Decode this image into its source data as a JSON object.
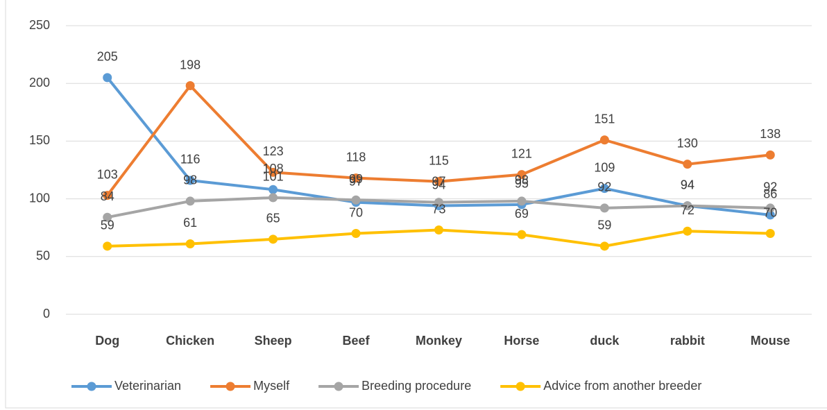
{
  "chart_data": {
    "type": "line",
    "categories": [
      "Dog",
      "Chicken",
      "Sheep",
      "Beef",
      "Monkey",
      "Horse",
      "duck",
      "rabbit",
      "Mouse"
    ],
    "series": [
      {
        "name": "Veterinarian",
        "color": "#5b9bd5",
        "values": [
          205,
          116,
          108,
          97,
          94,
          95,
          109,
          94,
          86
        ]
      },
      {
        "name": "Myself",
        "color": "#ed7d31",
        "values": [
          103,
          198,
          123,
          118,
          115,
          121,
          151,
          130,
          138
        ]
      },
      {
        "name": "Breeding procedure",
        "color": "#a5a5a5",
        "values": [
          84,
          98,
          101,
          99,
          97,
          98,
          92,
          94,
          92
        ]
      },
      {
        "name": "Advice from another breeder",
        "color": "#ffc000",
        "values": [
          59,
          61,
          65,
          70,
          73,
          69,
          59,
          72,
          70
        ]
      }
    ],
    "ylim": [
      0,
      250
    ],
    "yticks": [
      0,
      50,
      100,
      150,
      200,
      250
    ],
    "grid": true,
    "legend": "bottom",
    "data_labels": true
  }
}
